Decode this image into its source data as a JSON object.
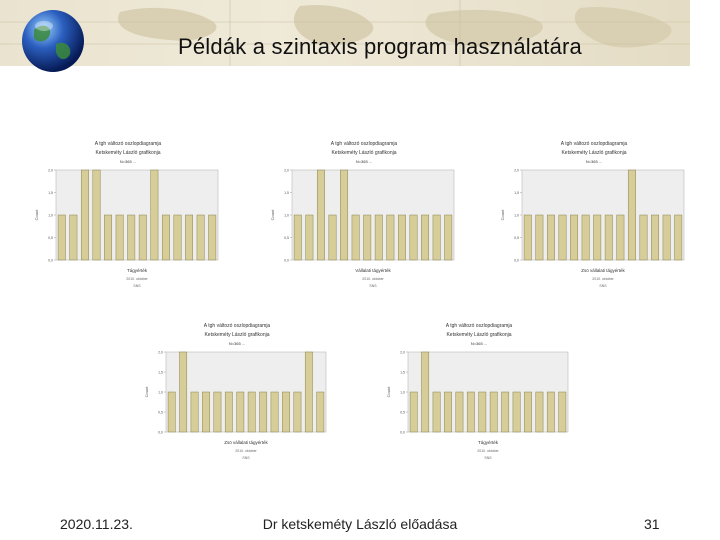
{
  "slide": {
    "title": "Példák a szintaxis program használatára",
    "footer": {
      "date": "2020.11.23.",
      "author": "Dr ketskeméty László előadása",
      "page": "31"
    }
  },
  "colors": {
    "bar_fill": "#d6cd99",
    "bar_stroke": "#8c8350",
    "plot_bg": "#eeeeee"
  },
  "chart_data": [
    {
      "type": "bar",
      "title_lines": [
        "A tgh változó oszlopdiagramja",
        "Ketskeméty László grafikonja",
        "N=365 ..."
      ],
      "categories": [
        "",
        "",
        "",
        "",
        "",
        "",
        "",
        "",
        "",
        "",
        "",
        "",
        "",
        ""
      ],
      "values": [
        1,
        1,
        2,
        2,
        1,
        1,
        1,
        1,
        2,
        1,
        1,
        1,
        1,
        1
      ],
      "ylim": [
        0,
        2
      ],
      "yticks": [
        "2,0",
        "1,5",
        "1,0",
        "0,5",
        "0,0"
      ],
      "ylabel": "Count",
      "xlabel": "Tágyérték",
      "notes": [
        "2010. oktober",
        "SNS"
      ]
    },
    {
      "type": "bar",
      "title_lines": [
        "A tgh változó oszlopdiagramja",
        "Ketskeméty László grafikonja",
        "N=365 ..."
      ],
      "categories": [
        "",
        "",
        "",
        "",
        "",
        "",
        "",
        "",
        "",
        "",
        "",
        "",
        "",
        ""
      ],
      "values": [
        1,
        1,
        2,
        1,
        2,
        1,
        1,
        1,
        1,
        1,
        1,
        1,
        1,
        1
      ],
      "ylim": [
        0,
        2
      ],
      "yticks": [
        "2,0",
        "1,5",
        "1,0",
        "0,5",
        "0,0"
      ],
      "ylabel": "Count",
      "xlabel": "Vállalati tágyérték",
      "notes": [
        "2010. oktober",
        "SNS"
      ]
    },
    {
      "type": "bar",
      "title_lines": [
        "A tgh változó oszlopdiagramja",
        "Ketskeméty László grafikonja",
        "N=365 ..."
      ],
      "categories": [
        "",
        "",
        "",
        "",
        "",
        "",
        "",
        "",
        "",
        "",
        "",
        "",
        "",
        ""
      ],
      "values": [
        1,
        1,
        1,
        1,
        1,
        1,
        1,
        1,
        1,
        2,
        1,
        1,
        1,
        1
      ],
      "ylim": [
        0,
        2
      ],
      "yticks": [
        "2,0",
        "1,5",
        "1,0",
        "0,5",
        "0,0"
      ],
      "ylabel": "Count",
      "xlabel": "Zsö vállalati tágyérték",
      "notes": [
        "2010. oktober",
        "SNS"
      ]
    },
    {
      "type": "bar",
      "title_lines": [
        "A tgh változó oszlopdiagramja",
        "Ketskeméty László grafikonja",
        "N=365 ..."
      ],
      "categories": [
        "",
        "",
        "",
        "",
        "",
        "",
        "",
        "",
        "",
        "",
        "",
        "",
        "",
        ""
      ],
      "values": [
        1,
        2,
        1,
        1,
        1,
        1,
        1,
        1,
        1,
        1,
        1,
        1,
        2,
        1
      ],
      "ylim": [
        0,
        2
      ],
      "yticks": [
        "2,0",
        "1,5",
        "1,0",
        "0,5",
        "0,0"
      ],
      "ylabel": "Count",
      "xlabel": "Zsö vállalati tágyérték",
      "notes": [
        "2010. oktober",
        "SNS"
      ]
    },
    {
      "type": "bar",
      "title_lines": [
        "A tgh változó oszlopdiagramja",
        "Ketskeméty László grafikonja",
        "N=365 ..."
      ],
      "categories": [
        "",
        "",
        "",
        "",
        "",
        "",
        "",
        "",
        "",
        "",
        "",
        "",
        "",
        ""
      ],
      "values": [
        1,
        2,
        1,
        1,
        1,
        1,
        1,
        1,
        1,
        1,
        1,
        1,
        1,
        1
      ],
      "ylim": [
        0,
        2
      ],
      "yticks": [
        "2,0",
        "1,5",
        "1,0",
        "0,5",
        "0,0"
      ],
      "ylabel": "Count",
      "xlabel": "Tágyérték",
      "notes": [
        "2010. oktober",
        "SNS"
      ]
    }
  ]
}
